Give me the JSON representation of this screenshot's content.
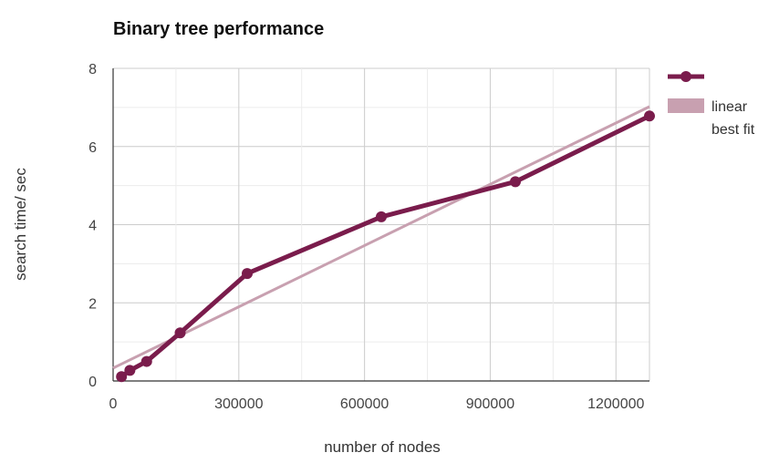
{
  "chart_data": {
    "type": "line",
    "title": "Binary tree performance",
    "xlabel": "number of nodes",
    "ylabel": "search time/ sec",
    "xlim": [
      0,
      1280000
    ],
    "ylim": [
      0,
      8
    ],
    "xticks": [
      "0",
      "300000",
      "600000",
      "900000",
      "1200000"
    ],
    "xtick_values": [
      0,
      300000,
      600000,
      900000,
      1200000
    ],
    "yticks": [
      "0",
      "2",
      "4",
      "6",
      "8"
    ],
    "ytick_values": [
      0,
      2,
      4,
      6,
      8
    ],
    "grid": true,
    "legend_position": "right",
    "series": [
      {
        "name": "",
        "style": "line-with-markers",
        "color": "#7a1c4c",
        "x": [
          20000,
          40000,
          80000,
          160000,
          320000,
          640000,
          960000,
          1280000
        ],
        "y": [
          0.11,
          0.27,
          0.5,
          1.23,
          2.75,
          4.2,
          5.1,
          6.78
        ]
      },
      {
        "name": "linear best fit",
        "style": "line",
        "color": "#c8a0b0",
        "x": [
          0,
          1280000
        ],
        "y": [
          0.33,
          7.02
        ]
      }
    ],
    "legend": {
      "series_label": "",
      "fit_label_line1": "linear",
      "fit_label_line2": "best fit"
    }
  }
}
